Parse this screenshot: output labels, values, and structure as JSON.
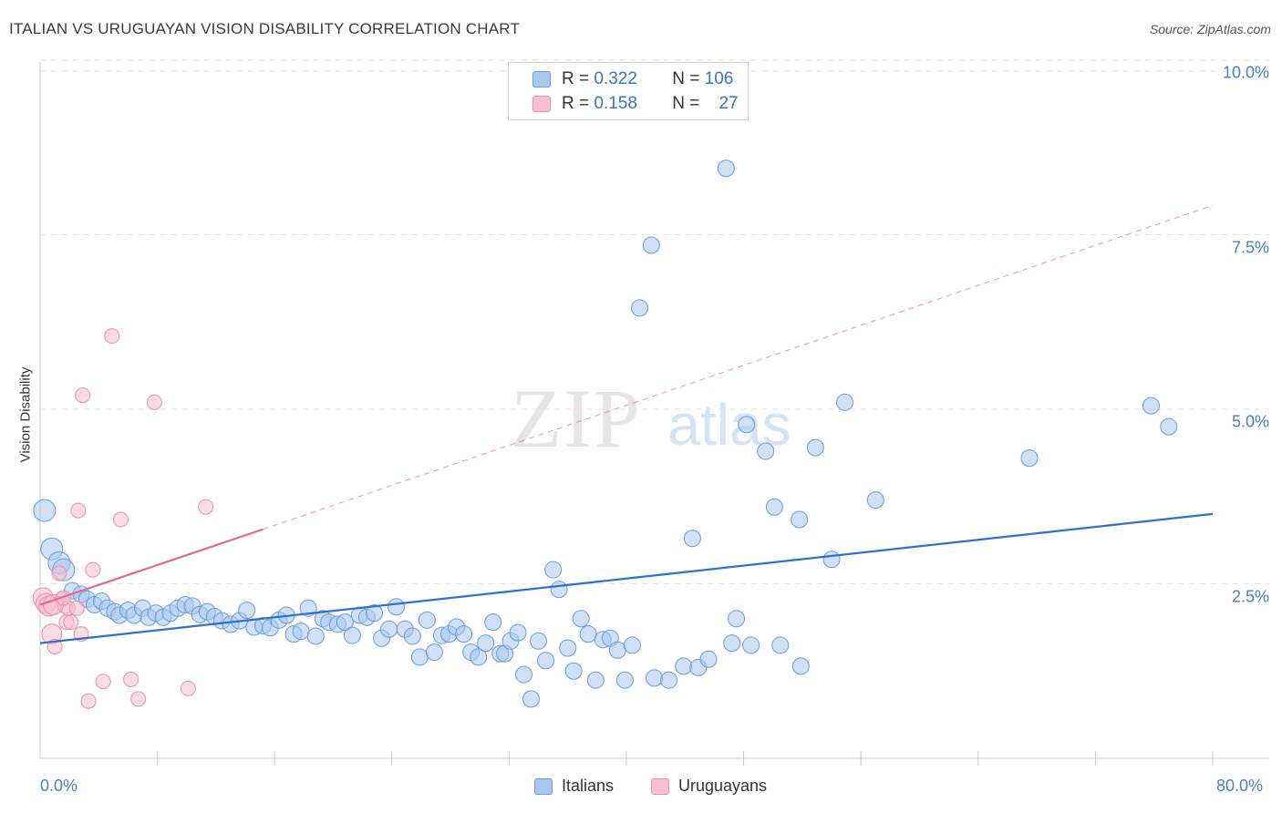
{
  "title": "ITALIAN VS URUGUAYAN VISION DISABILITY CORRELATION CHART",
  "source": "Source: ZipAtlas.com",
  "watermark": {
    "zip": "ZIP",
    "atlas": "atlas"
  },
  "legend": {
    "rows": [
      {
        "r_label": "R =",
        "r_value": "0.322",
        "n_label": "N =",
        "n_value": "106"
      },
      {
        "r_label": "R =",
        "r_value": "0.158",
        "n_label": "N =",
        "n_value": "27"
      }
    ]
  },
  "colors": {
    "italians_fill": "#a9c8f0",
    "italians_stroke": "#6a9ad8",
    "italians_line": "#2f6fcf",
    "uruguayans_fill": "#f7bfd0",
    "uruguayans_stroke": "#e890aa",
    "uruguayans_line": "#e06892",
    "axis_text": "#4a7fc8"
  },
  "chart_data": {
    "type": "scatter",
    "title": "ITALIAN VS URUGUAYAN VISION DISABILITY CORRELATION CHART",
    "xlabel": "",
    "ylabel": "Vision Disability",
    "xlim": [
      0,
      80
    ],
    "ylim": [
      0,
      10.5
    ],
    "x_tick_labels": [
      "0.0%",
      "80.0%"
    ],
    "y_ticks": [
      2.5,
      5.0,
      7.5,
      10.0
    ],
    "y_tick_labels": [
      "2.5%",
      "5.0%",
      "7.5%",
      "10.0%"
    ],
    "grid": "horizontal dashed",
    "legend_position": "top-center",
    "series": [
      {
        "name": "Italians",
        "R": 0.322,
        "N": 106,
        "trend": {
          "x": [
            0,
            80
          ],
          "y": [
            1.65,
            3.5
          ]
        },
        "points": [
          [
            0.3,
            3.55
          ],
          [
            0.8,
            3.0
          ],
          [
            1.3,
            2.8
          ],
          [
            1.6,
            2.7
          ],
          [
            2.2,
            2.4
          ],
          [
            2.8,
            2.35
          ],
          [
            3.2,
            2.28
          ],
          [
            3.7,
            2.2
          ],
          [
            4.2,
            2.25
          ],
          [
            4.6,
            2.15
          ],
          [
            5.1,
            2.1
          ],
          [
            5.4,
            2.05
          ],
          [
            6.0,
            2.12
          ],
          [
            6.4,
            2.05
          ],
          [
            7.0,
            2.15
          ],
          [
            7.4,
            2.02
          ],
          [
            7.9,
            2.08
          ],
          [
            8.4,
            2.02
          ],
          [
            8.9,
            2.08
          ],
          [
            9.4,
            2.15
          ],
          [
            9.9,
            2.2
          ],
          [
            10.4,
            2.18
          ],
          [
            10.9,
            2.06
          ],
          [
            11.4,
            2.1
          ],
          [
            11.9,
            2.03
          ],
          [
            12.4,
            1.97
          ],
          [
            13.0,
            1.92
          ],
          [
            13.6,
            1.97
          ],
          [
            14.1,
            2.12
          ],
          [
            14.6,
            1.88
          ],
          [
            15.2,
            1.9
          ],
          [
            15.7,
            1.87
          ],
          [
            16.3,
            1.98
          ],
          [
            16.8,
            2.05
          ],
          [
            17.3,
            1.78
          ],
          [
            17.8,
            1.82
          ],
          [
            18.3,
            2.15
          ],
          [
            18.8,
            1.75
          ],
          [
            19.3,
            2.0
          ],
          [
            19.7,
            1.95
          ],
          [
            20.3,
            1.92
          ],
          [
            20.8,
            1.95
          ],
          [
            21.3,
            1.76
          ],
          [
            21.8,
            2.05
          ],
          [
            22.3,
            2.02
          ],
          [
            22.8,
            2.08
          ],
          [
            23.3,
            1.72
          ],
          [
            23.8,
            1.85
          ],
          [
            24.3,
            2.17
          ],
          [
            24.9,
            1.85
          ],
          [
            25.4,
            1.75
          ],
          [
            25.9,
            1.45
          ],
          [
            26.4,
            1.98
          ],
          [
            26.9,
            1.52
          ],
          [
            27.4,
            1.76
          ],
          [
            27.9,
            1.78
          ],
          [
            28.4,
            1.88
          ],
          [
            28.9,
            1.78
          ],
          [
            29.4,
            1.52
          ],
          [
            29.9,
            1.45
          ],
          [
            30.4,
            1.65
          ],
          [
            30.9,
            1.95
          ],
          [
            31.4,
            1.5
          ],
          [
            31.7,
            1.5
          ],
          [
            32.1,
            1.68
          ],
          [
            32.6,
            1.8
          ],
          [
            33.0,
            1.2
          ],
          [
            33.5,
            0.85
          ],
          [
            34.0,
            1.68
          ],
          [
            34.5,
            1.4
          ],
          [
            35.0,
            2.7
          ],
          [
            35.4,
            2.42
          ],
          [
            36.0,
            1.58
          ],
          [
            36.4,
            1.25
          ],
          [
            36.9,
            2.0
          ],
          [
            37.4,
            1.78
          ],
          [
            37.9,
            1.12
          ],
          [
            38.4,
            1.7
          ],
          [
            38.9,
            1.72
          ],
          [
            39.4,
            1.55
          ],
          [
            39.9,
            1.12
          ],
          [
            40.4,
            1.62
          ],
          [
            40.9,
            6.45
          ],
          [
            41.7,
            7.35
          ],
          [
            41.9,
            1.15
          ],
          [
            42.9,
            1.12
          ],
          [
            43.9,
            1.32
          ],
          [
            44.5,
            3.15
          ],
          [
            44.9,
            1.3
          ],
          [
            45.6,
            1.42
          ],
          [
            46.8,
            8.45
          ],
          [
            47.2,
            1.65
          ],
          [
            47.5,
            2.0
          ],
          [
            48.2,
            4.78
          ],
          [
            48.5,
            1.62
          ],
          [
            49.5,
            4.4
          ],
          [
            50.1,
            3.6
          ],
          [
            50.5,
            1.62
          ],
          [
            51.8,
            3.42
          ],
          [
            51.9,
            1.32
          ],
          [
            52.9,
            4.45
          ],
          [
            54.0,
            2.85
          ],
          [
            54.9,
            5.1
          ],
          [
            57.0,
            3.7
          ],
          [
            67.5,
            4.3
          ],
          [
            75.8,
            5.05
          ],
          [
            77.0,
            4.75
          ]
        ]
      },
      {
        "name": "Uruguayans",
        "R": 0.158,
        "N": 27,
        "trend": {
          "x": [
            0,
            15.2
          ],
          "y": [
            2.2,
            3.28
          ],
          "dashed_extension": {
            "x": [
              15.2,
              80
            ],
            "y": [
              3.28,
              7.92
            ]
          }
        },
        "points": [
          [
            0.2,
            2.3
          ],
          [
            0.4,
            2.22
          ],
          [
            0.6,
            2.18
          ],
          [
            0.8,
            1.78
          ],
          [
            1.0,
            1.6
          ],
          [
            1.3,
            2.65
          ],
          [
            1.5,
            2.28
          ],
          [
            1.7,
            2.18
          ],
          [
            1.8,
            1.95
          ],
          [
            1.9,
            2.15
          ],
          [
            2.1,
            1.95
          ],
          [
            2.5,
            2.15
          ],
          [
            2.6,
            3.55
          ],
          [
            2.8,
            1.78
          ],
          [
            2.9,
            5.2
          ],
          [
            3.3,
            0.82
          ],
          [
            3.6,
            2.7
          ],
          [
            4.3,
            1.1
          ],
          [
            4.9,
            6.05
          ],
          [
            5.5,
            3.42
          ],
          [
            6.2,
            1.13
          ],
          [
            6.7,
            0.85
          ],
          [
            7.8,
            5.1
          ],
          [
            10.1,
            1.0
          ],
          [
            11.3,
            3.6
          ],
          [
            0.9,
            2.2
          ],
          [
            1.6,
            2.3
          ]
        ]
      }
    ]
  },
  "bottom_legend": [
    {
      "label": "Italians"
    },
    {
      "label": "Uruguayans"
    }
  ]
}
